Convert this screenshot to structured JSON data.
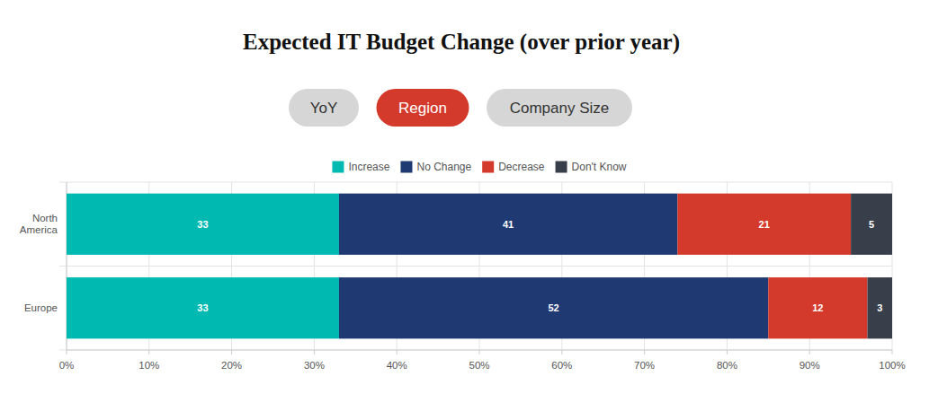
{
  "tabs": {
    "labels": [
      "YoY",
      "Region",
      "Company Size"
    ],
    "selected": "Region"
  },
  "chart_data": {
    "type": "bar",
    "title": "Expected IT Budget Change (over prior year)",
    "orientation": "horizontal",
    "stacked": true,
    "data_labels": true,
    "grid": true,
    "legend": "top",
    "categories": [
      "North America",
      "Europe"
    ],
    "series": [
      {
        "name": "Increase",
        "color": "#00b9b1",
        "values": [
          33,
          33
        ]
      },
      {
        "name": "No Change",
        "color": "#1f3a73",
        "values": [
          41,
          52
        ]
      },
      {
        "name": "Decrease",
        "color": "#d33a2c",
        "values": [
          21,
          12
        ]
      },
      {
        "name": "Don't Know",
        "color": "#383f4a",
        "values": [
          5,
          3
        ]
      }
    ],
    "xlim": [
      0,
      100
    ],
    "xticks": [
      {
        "value": 0,
        "label": "0%"
      },
      {
        "value": 10,
        "label": "10%"
      },
      {
        "value": 20,
        "label": "20%"
      },
      {
        "value": 30,
        "label": "30%"
      },
      {
        "value": 40,
        "label": "40%"
      },
      {
        "value": 50,
        "label": "50%"
      },
      {
        "value": 60,
        "label": "60%"
      },
      {
        "value": 70,
        "label": "70%"
      },
      {
        "value": 80,
        "label": "80%"
      },
      {
        "value": 90,
        "label": "90%"
      },
      {
        "value": 100,
        "label": "100%"
      }
    ]
  }
}
